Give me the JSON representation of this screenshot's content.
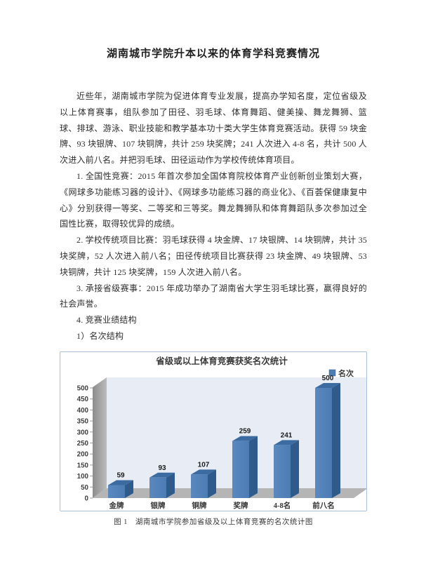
{
  "document": {
    "title": "湖南城市学院升本以来的体育学科竞赛情况",
    "paragraphs": [
      "近些年，湖南城市学院为促进体育专业发展，提高办学知名度，定位省级及以上体育赛事，组队参加了田径、羽毛球、体育舞蹈、健美操、舞龙舞狮、篮球、排球、游泳、职业技能和教学基本功十类大学生体育竞赛活动。获得 59 块金牌、93 块银牌、107 块铜牌，共计 259 块奖牌；241 人次进入 4-8 名，共计 500 人次进入前八名。并把羽毛球、田径运动作为学校传统体育项目。",
      "1. 全国性竞赛：2015 年首次参加全国体育院校体育产业创新创业策划大赛，《网球多功能练习器的设计》、《网球多功能练习器的商业化》、《百荟保健康复中心》分别获得一等奖、二等奖和三等奖。舞龙舞狮队和体育舞蹈队多次参加过全国性比赛，取得较优异的成绩。",
      "2. 学校传统项目比赛：羽毛球获得 4 块金牌、17 块银牌、14 块铜牌，共计 35 块奖牌，52 人次进入前八名；田径传统项目比赛获得 23 块金牌、49 块银牌、53 块铜牌，共计 125 块奖牌，159 人次进入前八名。",
      "3. 承接省级赛事：2015 年成功举办了湖南省大学生羽毛球比赛，赢得良好的社会声誉。",
      "4. 竞赛业绩结构",
      "1）名次结构"
    ],
    "figure_caption": "图 1　湖南城市学院参加省级及以上体育竞赛的名次统计图"
  },
  "chart_data": {
    "type": "bar",
    "style": "3d-column",
    "title": "省级或以上体育竞赛获奖名次统计",
    "legend": {
      "label": "名次",
      "position": "top-right"
    },
    "categories": [
      "金牌",
      "银牌",
      "铜牌",
      "奖牌",
      "4-8名",
      "前八名"
    ],
    "values": [
      59,
      93,
      107,
      259,
      241,
      500
    ],
    "data_labels": [
      "59",
      "93",
      "107",
      "259",
      "241",
      "500"
    ],
    "ylim": [
      0,
      500
    ],
    "ytick_step": 50,
    "grid": false,
    "colors": {
      "bar_front": "#4c7cb4",
      "bar_side": "#2e5a8c",
      "bar_top": "#3c6ba1",
      "plot_bg": "#e8ecf4",
      "wall_dark": "#8c8c8c",
      "wall_light": "#bcbcbc",
      "floor": "#b5b5b5",
      "border": "#a7c1dc",
      "text": "#3a3a3a"
    }
  }
}
